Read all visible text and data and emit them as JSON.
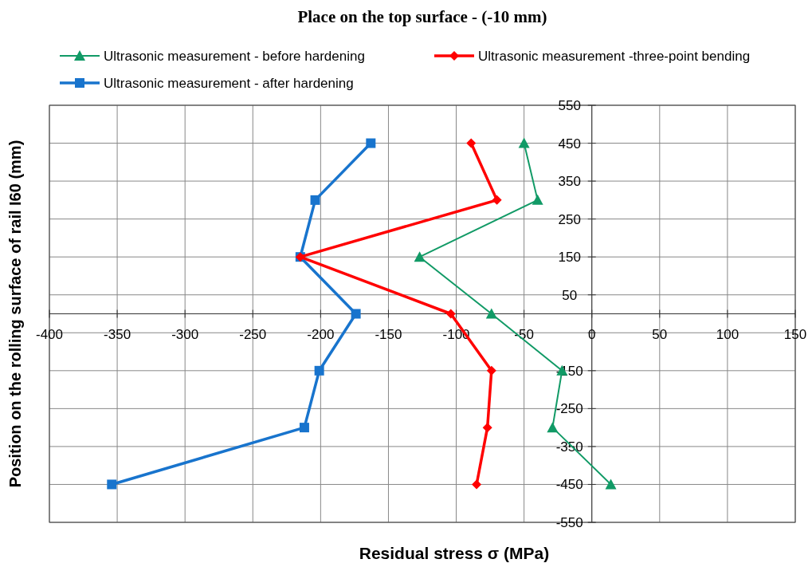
{
  "chart_data": {
    "type": "line",
    "title": "Place on the top surface - (-10 mm)",
    "xlabel": "Residual stress  σ (MPa)",
    "ylabel": "Position on the rolling surface of rail I60 (mm)",
    "xlim": [
      -400,
      150
    ],
    "xticks": [
      -400,
      -350,
      -300,
      -250,
      -200,
      -150,
      -100,
      -50,
      0,
      50,
      100,
      150
    ],
    "ylim": [
      -550,
      550
    ],
    "yticks": [
      550,
      450,
      350,
      250,
      150,
      50,
      {
        "value": -50,
        "label": null
      },
      -150,
      -250,
      -350,
      -450,
      -550
    ],
    "grid": true,
    "legend": "top",
    "series": [
      {
        "name": "Ultrasonic measurement - before hardening",
        "color": "#119a66",
        "marker": "triangle",
        "x": [
          -50,
          -40,
          -127,
          -74,
          -22,
          -29,
          14
        ],
        "values": [
          450,
          300,
          150,
          0,
          -150,
          -300,
          -450
        ]
      },
      {
        "name": "Ultrasonic measurement -three-point bending",
        "color": "#ff0000",
        "marker": "diamond",
        "x": [
          -89,
          -70,
          -215,
          -104,
          -74,
          -77,
          -85
        ],
        "values": [
          450,
          300,
          150,
          0,
          -150,
          -300,
          -450
        ]
      },
      {
        "name": "Ultrasonic measurement - after hardening",
        "color": "#1874cd",
        "marker": "square",
        "x": [
          -163,
          -204,
          -215,
          -174,
          -201,
          -212,
          -354
        ],
        "values": [
          450,
          300,
          150,
          0,
          -150,
          -300,
          -450
        ]
      }
    ]
  }
}
